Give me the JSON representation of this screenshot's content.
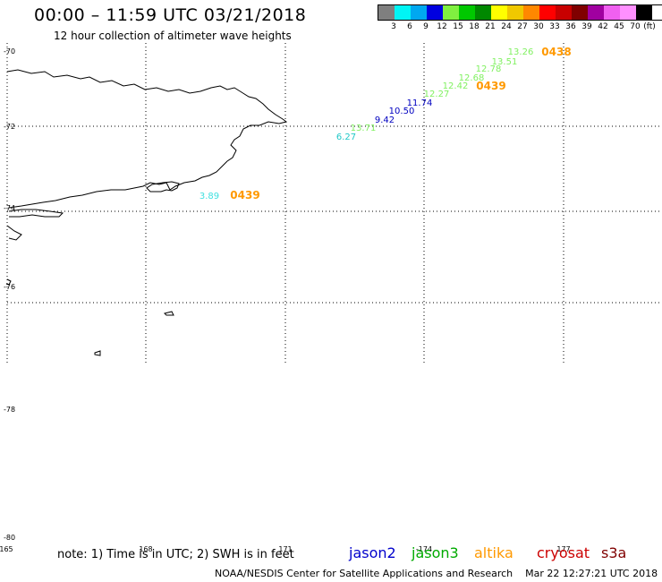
{
  "title": "00:00 – 11:59 UTC 03/21/2018",
  "subtitle": "12 hour collection of altimeter wave heights",
  "legend": {
    "colors": [
      "#7f7f7f",
      "#00f5f5",
      "#00a8f0",
      "#0000e0",
      "#80f040",
      "#00c800",
      "#008800",
      "#ffff00",
      "#f0c800",
      "#ff8800",
      "#ff0000",
      "#c80000",
      "#800000",
      "#a000a0",
      "#f060f0",
      "#ff90ff",
      "#000000"
    ],
    "labels": [
      "3",
      "6",
      "9",
      "12",
      "15",
      "18",
      "21",
      "24",
      "27",
      "30",
      "33",
      "36",
      "39",
      "42",
      "45",
      "70",
      "(ft)"
    ]
  },
  "lat_labels": [
    "-70",
    "-72",
    "-74",
    "-76",
    "-78",
    "-80"
  ],
  "lon_labels": [
    "165",
    "168",
    "171",
    "-174",
    "177"
  ],
  "tracks": [
    {
      "satellite": "jason3",
      "time": "0438",
      "time_color": "#ff9900",
      "time_pos": [
        622,
        58
      ],
      "points": [
        {
          "value": "13.26",
          "color": "#80f060",
          "pos": [
            582,
            57
          ]
        },
        {
          "value": "13.51",
          "color": "#80f060",
          "pos": [
            564,
            68
          ]
        },
        {
          "value": "12.78",
          "color": "#80f060",
          "pos": [
            546,
            76
          ]
        },
        {
          "value": "12.68",
          "color": "#80f060",
          "pos": [
            527,
            86
          ]
        },
        {
          "value": "12.42",
          "color": "#80f060",
          "pos": [
            509,
            95
          ]
        },
        {
          "value": "12.27",
          "color": "#80f060",
          "pos": [
            488,
            104
          ]
        },
        {
          "value": "11.74",
          "color": "#0000c0",
          "pos": [
            469,
            114
          ]
        },
        {
          "value": "10.50",
          "color": "#0000c0",
          "pos": [
            449,
            123
          ]
        },
        {
          "value": "9.42",
          "color": "#0000c0",
          "pos": [
            430,
            133
          ]
        },
        {
          "value": "13.71",
          "color": "#80f060",
          "pos": [
            406,
            142
          ]
        },
        {
          "value": "6.27",
          "color": "#20c8c8",
          "pos": [
            387,
            152
          ]
        }
      ]
    },
    {
      "satellite": "altika",
      "time": "0439",
      "time_color": "#ff9900",
      "time_pos": [
        549,
        96
      ],
      "points": []
    },
    {
      "satellite": "sentinel",
      "time": "0439",
      "time_color": "#ff9900",
      "time_pos": [
        274,
        218
      ],
      "points": [
        {
          "value": "3.89",
          "color": "#40e0e0",
          "pos": [
            234,
            218
          ]
        }
      ]
    }
  ],
  "footer": {
    "note": "note: 1) Time is in UTC; 2) SWH is in feet",
    "satellites": [
      {
        "name": "jason2",
        "color": "#0000cc"
      },
      {
        "name": "jason3",
        "color": "#00aa00"
      },
      {
        "name": "altika",
        "color": "#ff9900"
      },
      {
        "name": "cryosat",
        "color": "#cc0000"
      },
      {
        "name": "s3a",
        "color": "#800000"
      }
    ],
    "credit": "NOAA/NESDIS Center for Satellite Applications and Research",
    "timestamp": "Mar 22 12:27:21 UTC 2018"
  }
}
